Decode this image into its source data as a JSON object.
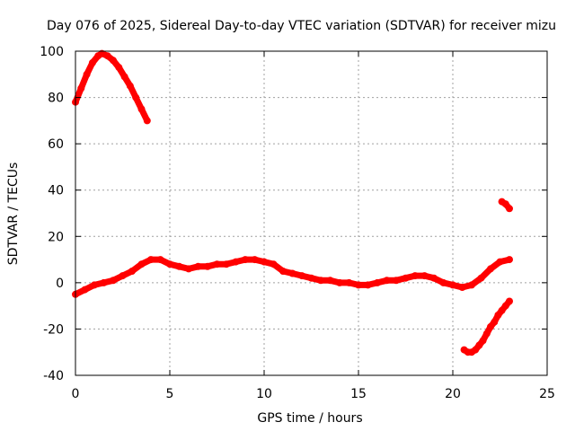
{
  "chart_data": {
    "type": "scatter",
    "title": "Day 076 of 2025, Sidereal Day-to-day VTEC variation (SDTVAR) for receiver mizu",
    "xlabel": "GPS time / hours",
    "ylabel": "SDTVAR / TECUs",
    "xlim": [
      0,
      25
    ],
    "ylim": [
      -40,
      100
    ],
    "xticks": [
      0,
      5,
      10,
      15,
      20,
      25
    ],
    "yticks": [
      -40,
      -20,
      0,
      20,
      40,
      60,
      80,
      100
    ],
    "grid": true,
    "color": "#ff0000",
    "series": [
      {
        "name": "early-high-arc",
        "x": [
          0.0,
          0.3,
          0.6,
          0.9,
          1.2,
          1.4,
          1.7,
          2.0,
          2.3,
          2.6,
          2.9,
          3.2,
          3.5,
          3.8
        ],
        "y": [
          78,
          84,
          90,
          95,
          98,
          99,
          98,
          96,
          93,
          89,
          85,
          80,
          75,
          70
        ]
      },
      {
        "name": "main-band",
        "x": [
          0.0,
          0.5,
          1.0,
          1.5,
          2.0,
          2.5,
          3.0,
          3.5,
          4.0,
          4.5,
          5.0,
          5.5,
          6.0,
          6.5,
          7.0,
          7.5,
          8.0,
          8.5,
          9.0,
          9.5,
          10.0,
          10.5,
          11.0,
          11.5,
          12.0,
          12.5,
          13.0,
          13.5,
          14.0,
          14.5,
          15.0,
          15.5,
          16.0,
          16.5,
          17.0,
          17.5,
          18.0,
          18.5,
          19.0,
          19.5,
          20.0,
          20.5,
          21.0,
          21.5,
          22.0,
          22.5,
          23.0
        ],
        "y": [
          -5,
          -3,
          -1,
          0,
          1,
          3,
          5,
          8,
          10,
          10,
          8,
          7,
          6,
          7,
          7,
          8,
          8,
          9,
          10,
          10,
          9,
          8,
          5,
          4,
          3,
          2,
          1,
          1,
          0,
          0,
          -1,
          -1,
          0,
          1,
          1,
          2,
          3,
          3,
          2,
          0,
          -1,
          -2,
          -1,
          2,
          6,
          9,
          10
        ]
      },
      {
        "name": "late-negative-arc",
        "x": [
          20.6,
          20.8,
          21.0,
          21.2,
          21.4,
          21.6,
          21.8,
          22.0,
          22.2,
          22.4,
          22.6,
          22.8,
          23.0
        ],
        "y": [
          -29,
          -30,
          -30,
          -29,
          -27,
          -25,
          -22,
          -19,
          -17,
          -14,
          -12,
          -10,
          -8
        ]
      },
      {
        "name": "late-high-segment",
        "x": [
          22.6,
          22.8,
          23.0
        ],
        "y": [
          35,
          34,
          32
        ]
      }
    ]
  }
}
